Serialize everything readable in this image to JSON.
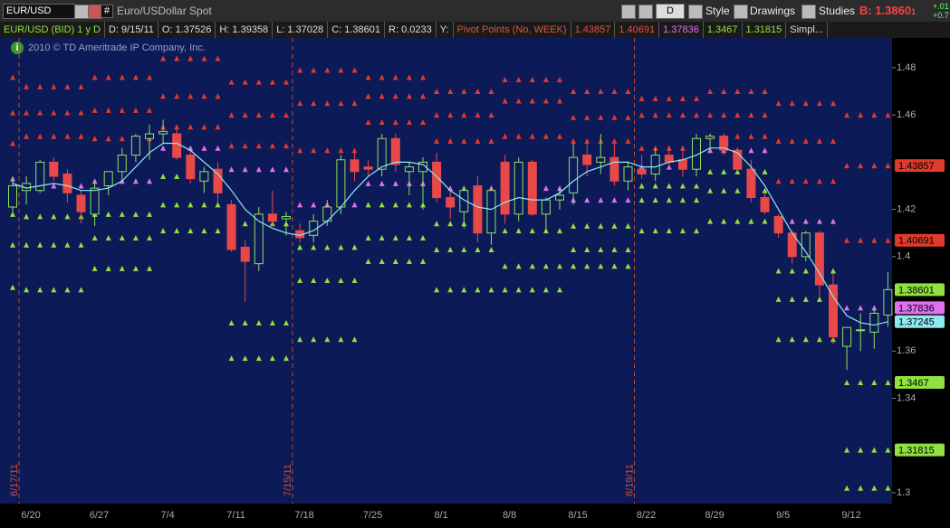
{
  "toolbar": {
    "symbol": "EUR/USD",
    "hash": "#",
    "description": "Euro/USDollar Spot",
    "aggregation": "D",
    "style": "Style",
    "drawings": "Drawings",
    "studies": "Studies",
    "bid": "B: 1.3860",
    "bid_digit": "1",
    "change": [
      "+.01",
      "+0.7"
    ]
  },
  "info_bar": {
    "instrument": "EUR/USD (BID) 1 y D",
    "date": "D: 9/15/11",
    "open": "O: 1.37526",
    "high": "H: 1.39358",
    "low": "L: 1.37028",
    "close": "C: 1.38601",
    "range": "R: 0.0233",
    "y": "Y:",
    "study": "Pivot Points (No, WEEK)",
    "study_values": [
      "1.43857",
      "1.40691",
      "1.37836",
      "1.3467",
      "1.31815"
    ],
    "more": "Simpl..."
  },
  "watermark": "2010 © TD Ameritrade IP Company, Inc.",
  "chart_data": {
    "type": "candlestick",
    "categories": [
      null,
      "6/20",
      null,
      null,
      null,
      null,
      "6/27",
      null,
      null,
      null,
      null,
      "7/4",
      null,
      null,
      null,
      null,
      "7/11",
      null,
      null,
      null,
      null,
      "7/18",
      null,
      null,
      null,
      null,
      "7/25",
      null,
      null,
      null,
      null,
      "8/1",
      null,
      null,
      null,
      null,
      "8/8",
      null,
      null,
      null,
      null,
      "8/15",
      null,
      null,
      null,
      null,
      "8/22",
      null,
      null,
      null,
      null,
      "8/29",
      null,
      null,
      null,
      null,
      "9/5",
      null,
      null,
      null,
      null,
      "9/12",
      null,
      null,
      null
    ],
    "expiration_labels": [
      "6/17/11",
      null,
      null,
      null,
      null,
      null,
      null,
      null,
      null,
      null,
      null,
      null,
      null,
      null,
      null,
      null,
      null,
      null,
      null,
      null,
      "7/15/11",
      null,
      null,
      null,
      null,
      null,
      null,
      null,
      null,
      null,
      null,
      null,
      null,
      null,
      null,
      null,
      null,
      null,
      null,
      null,
      null,
      null,
      null,
      null,
      null,
      "8/19/11",
      null,
      null,
      null,
      null,
      null,
      null,
      null,
      null,
      null,
      null,
      null,
      null,
      null,
      null,
      null,
      null,
      null,
      null,
      null
    ],
    "open": [
      1.421,
      1.428,
      1.428,
      1.44,
      1.435,
      1.426,
      1.418,
      1.43,
      1.436,
      1.443,
      1.45,
      1.452,
      1.452,
      1.443,
      1.432,
      1.437,
      1.422,
      1.404,
      1.397,
      1.418,
      1.416,
      1.411,
      1.409,
      1.415,
      1.421,
      1.441,
      1.438,
      1.437,
      1.45,
      1.436,
      1.436,
      1.44,
      1.425,
      1.419,
      1.43,
      1.41,
      1.44,
      1.418,
      1.44,
      1.418,
      1.424,
      1.427,
      1.443,
      1.44,
      1.442,
      1.432,
      1.437,
      1.435,
      1.443,
      1.441,
      1.437,
      1.45,
      1.451,
      1.445,
      1.437,
      1.425,
      1.417,
      1.41,
      1.4,
      1.41,
      1.388,
      1.362,
      1.369,
      1.368,
      1.37526
    ],
    "high": [
      1.434,
      1.434,
      1.441,
      1.442,
      1.437,
      1.428,
      1.432,
      1.436,
      1.446,
      1.452,
      1.456,
      1.458,
      1.454,
      1.445,
      1.438,
      1.44,
      1.424,
      1.407,
      1.421,
      1.428,
      1.419,
      1.414,
      1.418,
      1.424,
      1.443,
      1.444,
      1.441,
      1.452,
      1.452,
      1.44,
      1.442,
      1.444,
      1.429,
      1.43,
      1.434,
      1.43,
      1.443,
      1.442,
      1.441,
      1.425,
      1.429,
      1.448,
      1.449,
      1.452,
      1.448,
      1.44,
      1.443,
      1.446,
      1.447,
      1.446,
      1.452,
      1.452,
      1.452,
      1.446,
      1.441,
      1.427,
      1.418,
      1.411,
      1.411,
      1.411,
      1.393,
      1.37,
      1.376,
      1.378,
      1.39358
    ],
    "low": [
      1.419,
      1.422,
      1.427,
      1.432,
      1.423,
      1.414,
      1.413,
      1.426,
      1.433,
      1.44,
      1.441,
      1.448,
      1.441,
      1.431,
      1.427,
      1.423,
      1.402,
      1.381,
      1.394,
      1.413,
      1.409,
      1.406,
      1.406,
      1.413,
      1.418,
      1.432,
      1.434,
      1.434,
      1.436,
      1.426,
      1.42,
      1.423,
      1.416,
      1.412,
      1.406,
      1.405,
      1.414,
      1.415,
      1.417,
      1.41,
      1.42,
      1.422,
      1.434,
      1.435,
      1.43,
      1.428,
      1.433,
      1.432,
      1.437,
      1.434,
      1.434,
      1.445,
      1.443,
      1.436,
      1.423,
      1.418,
      1.408,
      1.397,
      1.398,
      1.383,
      1.363,
      1.352,
      1.36,
      1.361,
      1.37028
    ],
    "close": [
      1.43,
      1.431,
      1.44,
      1.434,
      1.427,
      1.419,
      1.429,
      1.436,
      1.443,
      1.451,
      1.452,
      1.453,
      1.442,
      1.433,
      1.436,
      1.427,
      1.403,
      1.398,
      1.418,
      1.415,
      1.417,
      1.408,
      1.415,
      1.421,
      1.441,
      1.436,
      1.437,
      1.45,
      1.439,
      1.438,
      1.44,
      1.425,
      1.421,
      1.428,
      1.41,
      1.428,
      1.418,
      1.44,
      1.418,
      1.424,
      1.426,
      1.442,
      1.439,
      1.442,
      1.432,
      1.438,
      1.435,
      1.443,
      1.44,
      1.437,
      1.45,
      1.451,
      1.445,
      1.437,
      1.425,
      1.419,
      1.41,
      1.4,
      1.41,
      1.388,
      1.366,
      1.37,
      1.369,
      1.376,
      1.38601
    ],
    "up_color": "#8fe05a",
    "down_color": "#e84848",
    "ma": {
      "color": "#8fe8f0",
      "values": [
        1.431,
        1.429,
        1.43,
        1.431,
        1.43,
        1.428,
        1.428,
        1.429,
        1.432,
        1.438,
        1.444,
        1.448,
        1.448,
        1.445,
        1.44,
        1.435,
        1.428,
        1.42,
        1.415,
        1.412,
        1.41,
        1.409,
        1.411,
        1.415,
        1.421,
        1.428,
        1.434,
        1.438,
        1.44,
        1.44,
        1.439,
        1.434,
        1.428,
        1.424,
        1.421,
        1.42,
        1.423,
        1.425,
        1.424,
        1.424,
        1.427,
        1.432,
        1.436,
        1.438,
        1.44,
        1.44,
        1.438,
        1.438,
        1.44,
        1.441,
        1.443,
        1.446,
        1.446,
        1.444,
        1.438,
        1.43,
        1.42,
        1.41,
        1.402,
        1.393,
        1.383,
        1.375,
        1.372,
        1.371,
        1.37245
      ]
    },
    "pivots": {
      "colors": [
        "#e03a2a",
        "#e03a2a",
        "#e03a2a",
        "#e070f0",
        "#8fe040",
        "#8fe040",
        "#8fe040"
      ],
      "levels": [
        [
          1.476,
          1.461,
          1.448,
          1.433,
          1.418,
          1.405,
          1.387
        ],
        [
          1.472,
          1.461,
          1.451,
          1.43,
          1.417,
          1.405,
          1.386
        ],
        [
          1.476,
          1.462,
          1.45,
          1.432,
          1.418,
          1.408,
          1.395
        ],
        [
          1.484,
          1.468,
          1.455,
          1.446,
          1.434,
          1.422,
          1.411
        ],
        [
          1.474,
          1.46,
          1.447,
          1.437,
          1.414,
          1.372,
          1.357
        ],
        [
          1.479,
          1.465,
          1.445,
          1.422,
          1.404,
          1.39,
          1.365
        ],
        [
          1.476,
          1.468,
          1.457,
          1.431,
          1.422,
          1.408,
          1.398
        ],
        [
          1.47,
          1.46,
          1.449,
          1.429,
          1.414,
          1.403,
          1.386
        ],
        [
          1.475,
          1.466,
          1.451,
          1.429,
          1.411,
          1.396,
          1.386
        ],
        [
          1.47,
          1.459,
          1.449,
          1.424,
          1.413,
          1.403,
          1.396
        ],
        [
          1.467,
          1.46,
          1.446,
          1.438,
          1.43,
          1.424,
          1.411
        ],
        [
          1.47,
          1.46,
          1.451,
          1.445,
          1.436,
          1.428,
          1.415
        ],
        [
          1.465,
          1.449,
          1.432,
          1.415,
          1.394,
          1.382,
          1.365
        ],
        [
          1.46,
          1.43857,
          1.40691,
          1.37836,
          1.3467,
          1.31815,
          1.302
        ]
      ]
    },
    "price_markers": [
      {
        "value": 1.43857,
        "color": "#e03a2a"
      },
      {
        "value": 1.40691,
        "color": "#e03a2a"
      },
      {
        "value": 1.38601,
        "color": "#8fe040"
      },
      {
        "value": 1.37836,
        "color": "#e070f0"
      },
      {
        "value": 1.37245,
        "color": "#8fe8f0"
      },
      {
        "value": 1.3467,
        "color": "#8fe040"
      },
      {
        "value": 1.31815,
        "color": "#8fe040"
      }
    ],
    "ylim": [
      1.2954,
      1.4926
    ],
    "yticks": [
      1.3,
      1.34,
      1.36,
      1.4,
      1.42,
      1.46,
      1.48
    ]
  }
}
